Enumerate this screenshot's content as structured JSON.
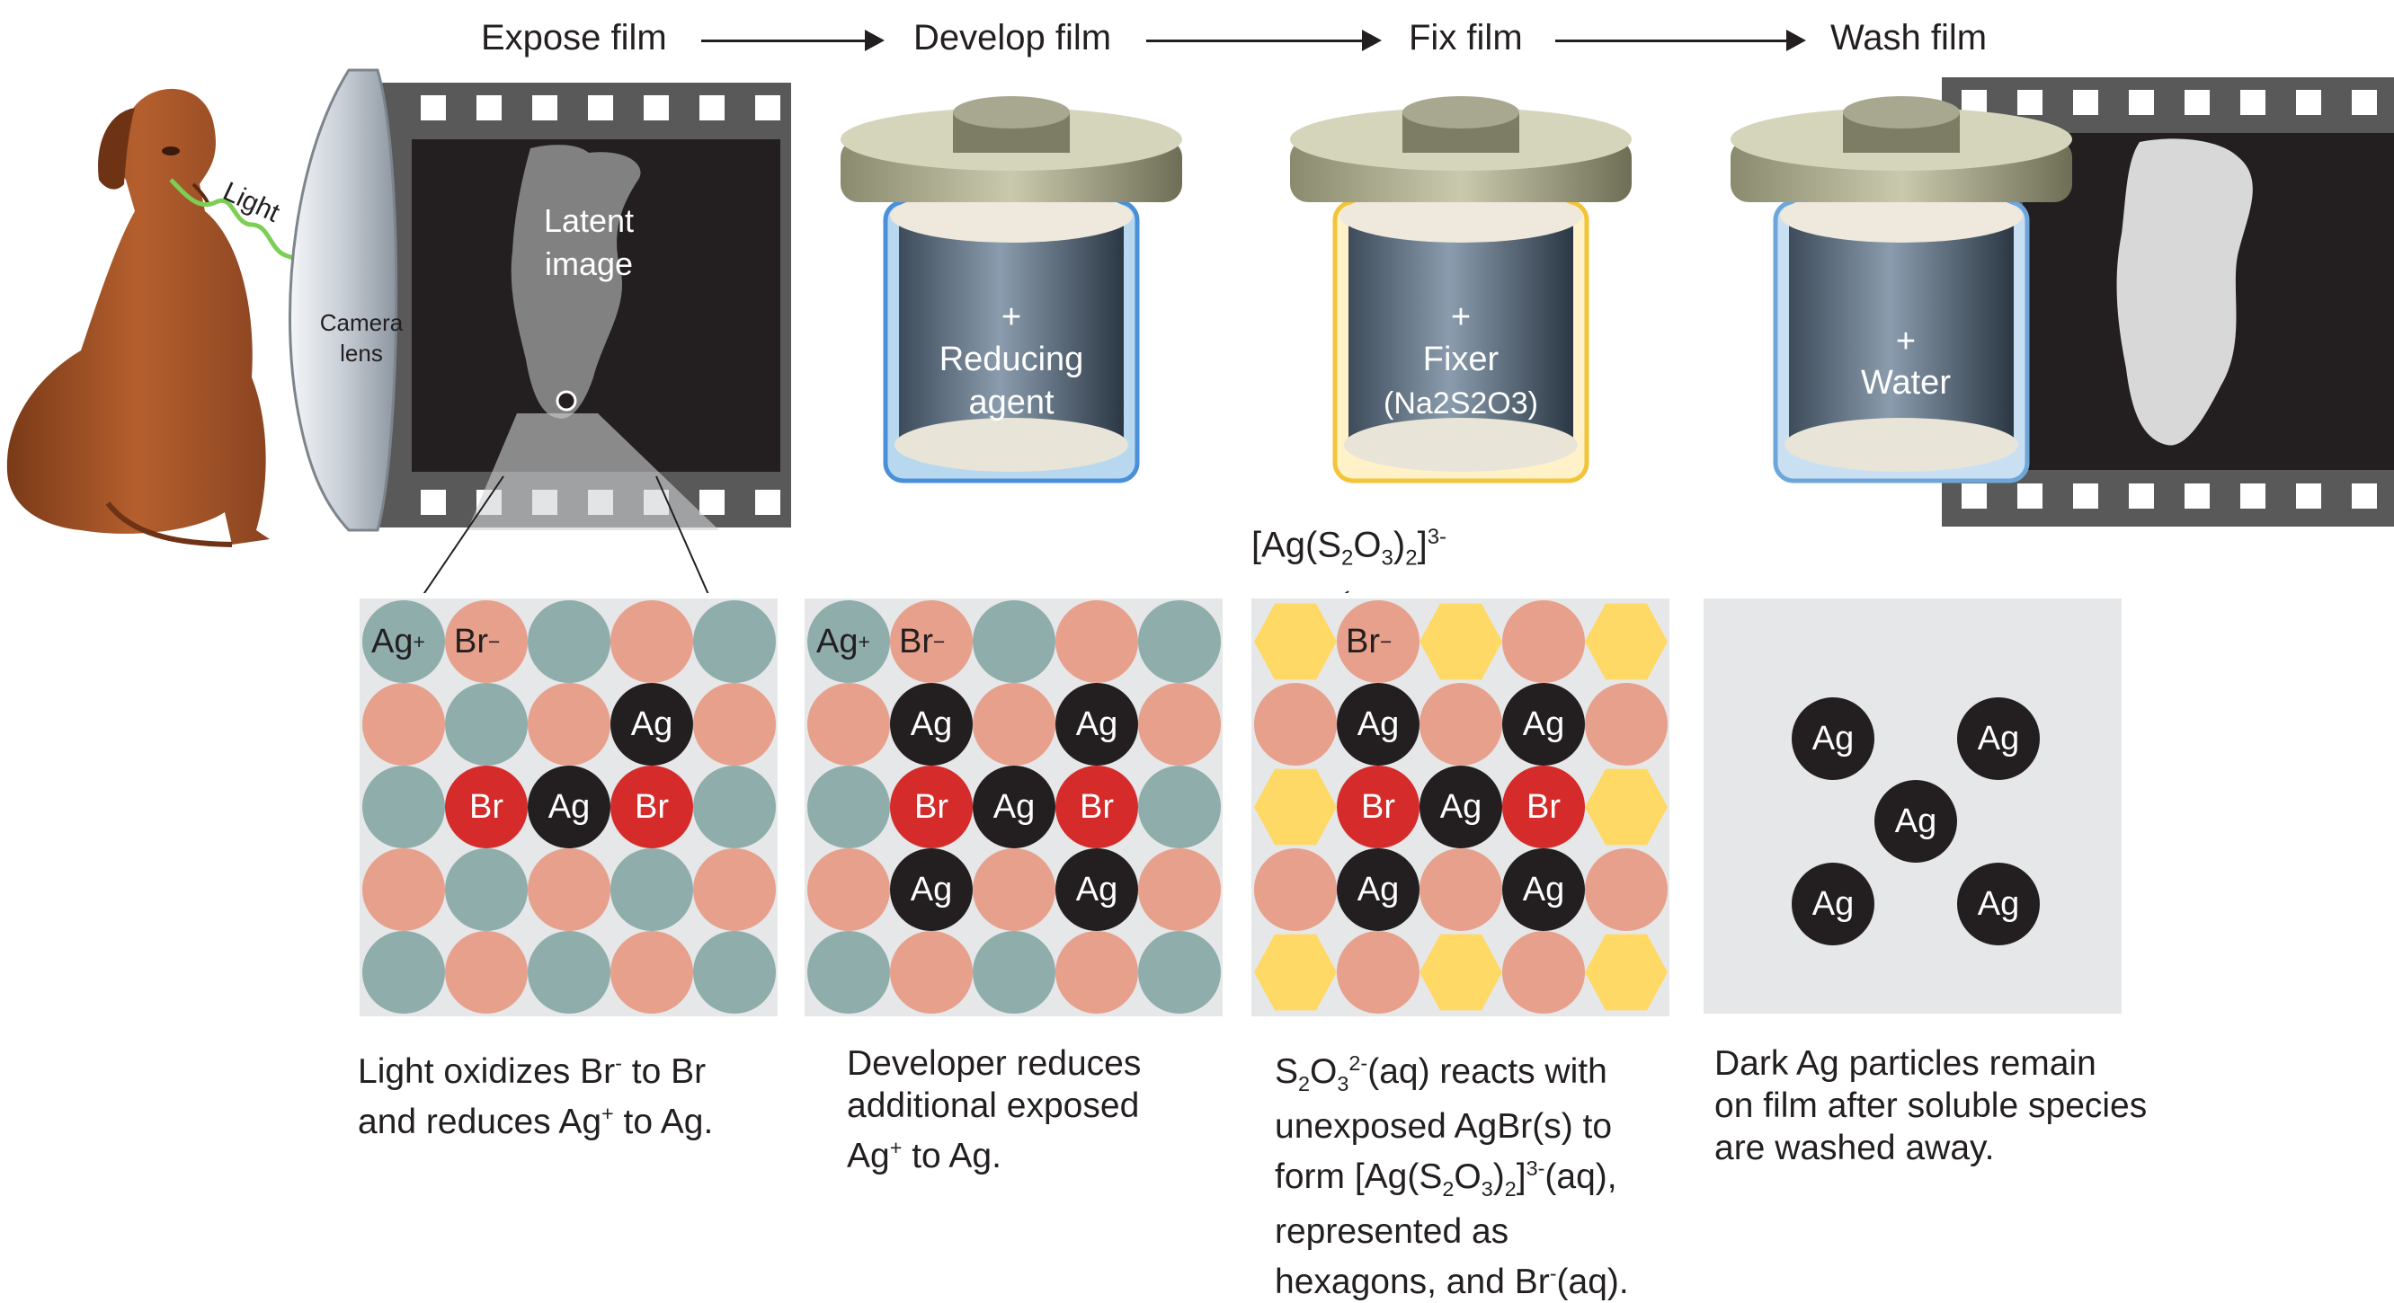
{
  "stages": {
    "expose": "Expose film",
    "develop": "Develop film",
    "fix": "Fix film",
    "wash": "Wash film"
  },
  "labels": {
    "light": "Light",
    "camera": "Camera",
    "lens": "lens",
    "latent1": "Latent",
    "latent2": "image",
    "plus": "+",
    "reducing": "Reducing",
    "agent": "agent",
    "fixer": "Fixer",
    "fixer_formula": "(Na2S2O3)",
    "water": "Water",
    "complex_pre": "[Ag(S",
    "complex_s": "2",
    "complex_o": "O",
    "complex_o3": "3",
    "complex_close": ")",
    "complex_2": "2",
    "complex_br": "]",
    "complex_charge": "3-"
  },
  "ions": {
    "ag": "Ag",
    "br": "Br",
    "ag_plus": "Ag",
    "plus_sign": "+",
    "br_minus": "Br",
    "minus_sign": "−"
  },
  "captions": {
    "c1_l1a": "Light oxidizes Br",
    "c1_l1sup": "-",
    "c1_l1b": " to Br",
    "c1_l2a": "and reduces Ag",
    "c1_l2sup": "+",
    "c1_l2b": " to Ag.",
    "c2_l1": "Developer reduces",
    "c2_l2": "additional exposed",
    "c2_l3a": "Ag",
    "c2_l3sup": "+",
    "c2_l3b": " to Ag.",
    "c3_l1a": "S",
    "c3_l1s1": "2",
    "c3_l1b": "O",
    "c3_l1s2": "3",
    "c3_l1sup": "2-",
    "c3_l1c": "(aq) reacts with",
    "c3_l2": "unexposed AgBr(s) to",
    "c3_l3a": "form [Ag(S",
    "c3_l3s1": "2",
    "c3_l3b": "O",
    "c3_l3s2": "3",
    "c3_l3c": ")",
    "c3_l3s3": "2",
    "c3_l3d": "]",
    "c3_l3sup": "3-",
    "c3_l3e": "(aq),",
    "c3_l4": "represented as",
    "c3_l5a": "hexagons, and Br",
    "c3_l5sup": "-",
    "c3_l5b": "(aq).",
    "c4_l1": "Dark Ag particles remain",
    "c4_l2": "on film after soluble species",
    "c4_l3": "are washed away."
  },
  "colors": {
    "ag": "#231f20",
    "br": "#d62b2b",
    "ag_plus": "#8eadab",
    "br_minus": "#e7a08c",
    "hexagon": "#ffd966",
    "panel": "#e6e7e8",
    "light_wave": "#6fbf4a",
    "dog": "#a0522d"
  }
}
